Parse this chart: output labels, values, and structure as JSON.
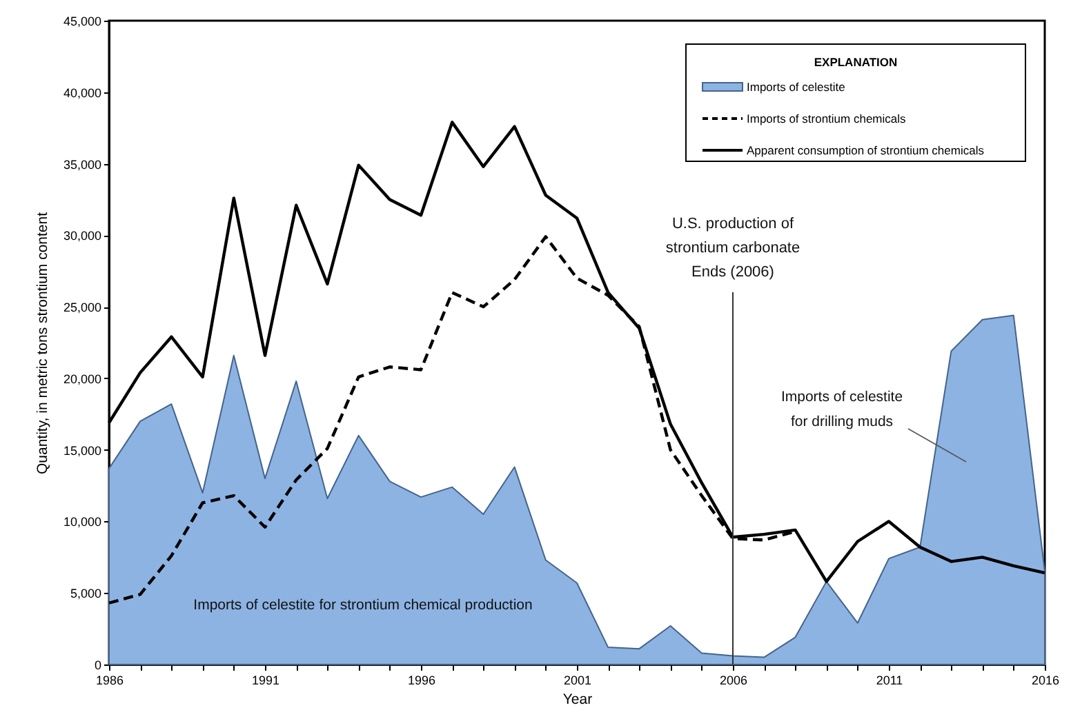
{
  "chart_data": {
    "type": "line",
    "xlabel": "Year",
    "ylabel": "Quantity, in metric tons strontium content",
    "legend_title": "EXPLANATION",
    "x": [
      1986,
      1987,
      1988,
      1989,
      1990,
      1991,
      1992,
      1993,
      1994,
      1995,
      1996,
      1997,
      1998,
      1999,
      2000,
      2001,
      2002,
      2003,
      2004,
      2005,
      2006,
      2007,
      2008,
      2009,
      2010,
      2011,
      2012,
      2013,
      2014,
      2015,
      2016
    ],
    "series": [
      {
        "name": "Imports of celestite",
        "type": "area",
        "color": "#8db3e2",
        "values": [
          13700,
          17000,
          18200,
          12000,
          21600,
          13000,
          19800,
          11600,
          16000,
          12800,
          11700,
          12400,
          10500,
          13800,
          7300,
          5700,
          1200,
          1100,
          2700,
          800,
          600,
          500,
          1900,
          5800,
          2900,
          7400,
          8200,
          21900,
          24100,
          24400,
          6500
        ]
      },
      {
        "name": "Imports of strontium chemicals",
        "color": "#000000",
        "line_style": "dashed",
        "values": [
          4300,
          4900,
          7600,
          11300,
          11800,
          9600,
          12900,
          15100,
          20100,
          20800,
          20600,
          26000,
          25000,
          26900,
          29900,
          27000,
          25800,
          23600,
          15000,
          11800,
          8800,
          8700,
          9300,
          null,
          null,
          null,
          null,
          null,
          null,
          null,
          null
        ]
      },
      {
        "name": "Apparent consumption of strontium chemicals",
        "color": "#000000",
        "line_style": "solid",
        "values": [
          16900,
          20400,
          22900,
          20100,
          32600,
          21600,
          32100,
          26600,
          34900,
          32500,
          31400,
          37900,
          34800,
          37600,
          32800,
          31200,
          26000,
          23500,
          16800,
          12700,
          8900,
          9100,
          9400,
          5800,
          8600,
          10000,
          8200,
          7200,
          7500,
          6900,
          6400
        ]
      }
    ],
    "xlim": [
      1986,
      2016
    ],
    "ylim": [
      0,
      45000
    ],
    "xticks": [
      1986,
      {
        "value": 1987,
        "label": null
      },
      {
        "value": 1988,
        "label": null
      },
      {
        "value": 1989,
        "label": null
      },
      {
        "value": 1990,
        "label": null
      },
      1991,
      {
        "value": 1992,
        "label": null
      },
      {
        "value": 1993,
        "label": null
      },
      {
        "value": 1994,
        "label": null
      },
      {
        "value": 1995,
        "label": null
      },
      1996,
      {
        "value": 1997,
        "label": null
      },
      {
        "value": 1998,
        "label": null
      },
      {
        "value": 1999,
        "label": null
      },
      {
        "value": 2000,
        "label": null
      },
      2001,
      {
        "value": 2002,
        "label": null
      },
      {
        "value": 2003,
        "label": null
      },
      {
        "value": 2004,
        "label": null
      },
      {
        "value": 2005,
        "label": null
      },
      2006,
      {
        "value": 2007,
        "label": null
      },
      {
        "value": 2008,
        "label": null
      },
      {
        "value": 2009,
        "label": null
      },
      {
        "value": 2010,
        "label": null
      },
      2011,
      {
        "value": 2012,
        "label": null
      },
      {
        "value": 2013,
        "label": null
      },
      {
        "value": 2014,
        "label": null
      },
      {
        "value": 2015,
        "label": null
      },
      2016
    ],
    "yticks": [
      0,
      {
        "value": 5000,
        "label": "5,000"
      },
      {
        "value": 10000,
        "label": "10,000"
      },
      {
        "value": 15000,
        "label": "15,000"
      },
      {
        "value": 20000,
        "label": "20,000"
      },
      {
        "value": 25000,
        "label": "25,000"
      },
      {
        "value": 30000,
        "label": "30,000"
      },
      {
        "value": 35000,
        "label": "35,000"
      },
      {
        "value": 40000,
        "label": "40,000"
      },
      {
        "value": 45000,
        "label": "45,000"
      }
    ],
    "ref_lines": [
      {
        "axis": "x",
        "value": 2006,
        "label": "U.S. production of\nstrontium carbonate\nEnds (2006)"
      }
    ],
    "annotations": [
      "Imports of celestite for strontium chemical production",
      "Imports of celestite\nfor drilling muds"
    ],
    "legend": "top right",
    "grid": false
  }
}
